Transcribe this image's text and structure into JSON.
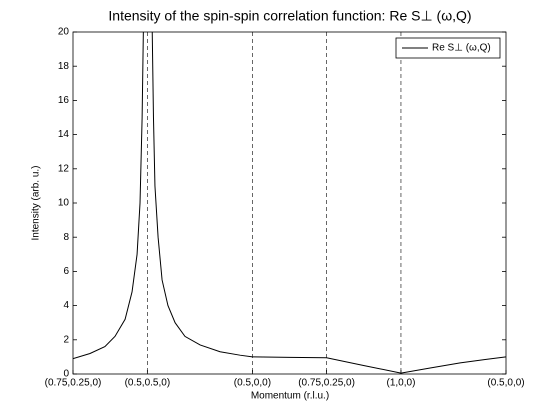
{
  "chart_data": {
    "type": "line",
    "title": "Intensity of the spin-spin correlation function: Re S⊥ (ω,Q)",
    "xlabel": "Momentum (r.l.u.)",
    "ylabel": "Intensity (arb. u.)",
    "xlim": [
      0,
      2.061
    ],
    "ylim": [
      0,
      20
    ],
    "xticks": [
      {
        "value": 0,
        "label": "(0.75,0.25,0)"
      },
      {
        "value": 0.354,
        "label": "(0.5,0.5,0)"
      },
      {
        "value": 0.854,
        "label": "(0.5,0,0)"
      },
      {
        "value": 1.207,
        "label": "(0.75,0.25,0)"
      },
      {
        "value": 1.561,
        "label": "(1,0,0)"
      },
      {
        "value": 2.061,
        "label": "(0.5,0,0)"
      }
    ],
    "yticks": [
      0,
      2,
      4,
      6,
      8,
      10,
      12,
      14,
      16,
      18,
      20
    ],
    "xgrid": true,
    "legend": "upper right",
    "x": [
      0,
      0.081,
      0.152,
      0.2,
      0.248,
      0.281,
      0.305,
      0.319,
      0.329,
      0.336,
      0.357,
      0.376,
      0.383,
      0.39,
      0.405,
      0.424,
      0.452,
      0.486,
      0.533,
      0.605,
      0.7,
      0.795,
      0.854,
      1.033,
      1.207,
      1.383,
      1.561,
      1.7,
      1.843,
      1.962,
      2.061
    ],
    "series": [
      {
        "name": "Re S⊥ (ω,Q)",
        "color": "#000000",
        "values": [
          0.9,
          1.2,
          1.6,
          2.2,
          3.2,
          4.8,
          7,
          10,
          15,
          21,
          40,
          21,
          15,
          11,
          8,
          5.5,
          4,
          3,
          2.2,
          1.7,
          1.3,
          1.1,
          1.0,
          0.97,
          0.95,
          0.5,
          0.05,
          0.35,
          0.65,
          0.85,
          1.0
        ]
      }
    ]
  }
}
